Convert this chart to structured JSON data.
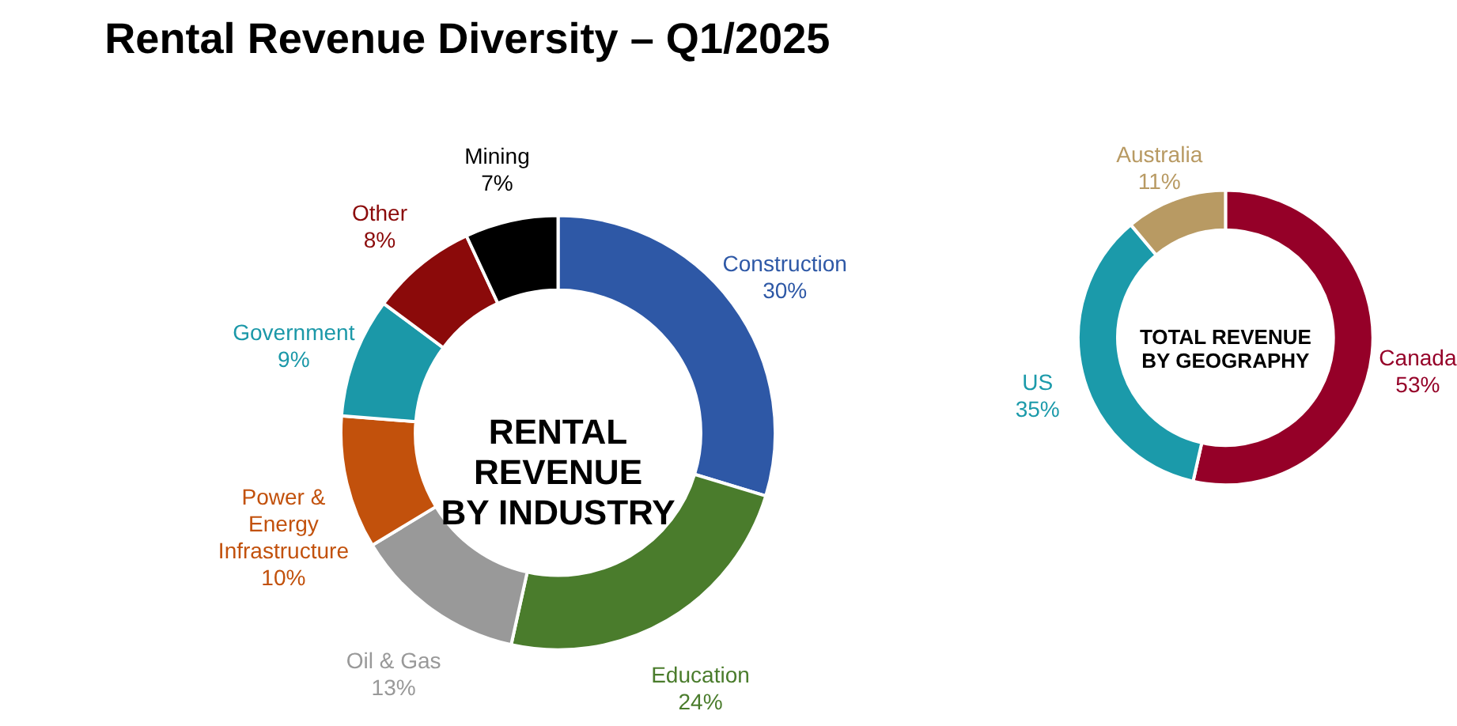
{
  "chart_data": [
    {
      "type": "donut",
      "title": "Rental Revenue Diversity – Q1/2025",
      "subtitle": "RENTAL\nREVENUE\nBY INDUSTRY",
      "categories": [
        "Construction",
        "Education",
        "Oil & Gas",
        "Power & Energy Infrastructure",
        "Government",
        "Other",
        "Mining"
      ],
      "values": [
        30,
        24,
        13,
        10,
        9,
        8,
        7
      ],
      "value_labels": [
        "30%",
        "24%",
        "13%",
        "10%",
        "9%",
        "8%",
        "7%"
      ],
      "colors": [
        "#2e58a6",
        "#4a7c2c",
        "#999999",
        "#c2510c",
        "#1b98a8",
        "#8b0a0a",
        "#000000"
      ]
    },
    {
      "type": "donut",
      "subtitle": "TOTAL REVENUE\nBY GEOGRAPHY",
      "categories": [
        "Canada",
        "US",
        "Australia"
      ],
      "values": [
        53,
        35,
        11
      ],
      "value_labels": [
        "53%",
        "35%",
        "11%"
      ],
      "colors": [
        "#950028",
        "#1b9aaa",
        "#b89a63"
      ]
    }
  ]
}
